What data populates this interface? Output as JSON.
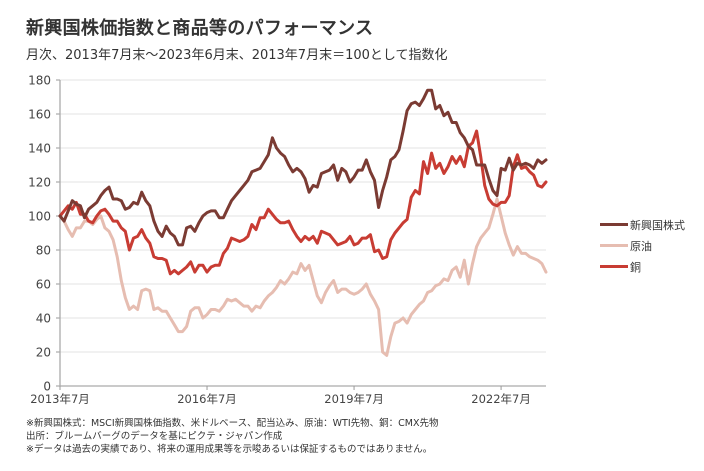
{
  "title": "新興国株価指数と商品等のパフォーマンス",
  "subtitle": "月次、2013年7月末～2023年6月末、2013年7月末＝100として指数化",
  "notes": [
    "※新興国株式：MSCI新興国株価指数、米ドルベース、配当込み、原油：WTI先物、銅：CMX先物",
    "出所：ブルームバーグのデータを基にピクテ・ジャパン作成",
    "※データは過去の実績であり、将来の運用成果等を示唆あるいは保証するものではありません。"
  ],
  "chart_data": {
    "type": "line",
    "title": "新興国株価指数と商品等のパフォーマンス",
    "xlabel": "",
    "ylabel": "",
    "x_start": "2013-07",
    "x_end": "2023-06",
    "frequency": "monthly",
    "ylim": [
      0,
      180
    ],
    "yticks": [
      0,
      20,
      40,
      60,
      80,
      100,
      120,
      140,
      160,
      180
    ],
    "xtick_labels": [
      "2013年7月",
      "2016年7月",
      "2019年7月",
      "2022年7月"
    ],
    "xtick_month_index": [
      0,
      36,
      72,
      108
    ],
    "grid": true,
    "legend_position": "right",
    "series": [
      {
        "name": "新興国株式",
        "color": "#7b3b33",
        "values": [
          100,
          97,
          103,
          109,
          107,
          106,
          99,
          104,
          106,
          108,
          112,
          115,
          117,
          110,
          110,
          109,
          104,
          105,
          108,
          107,
          114,
          109,
          106,
          97,
          91,
          88,
          94,
          90,
          88,
          83,
          83,
          93,
          94,
          91,
          96,
          100,
          102,
          103,
          103,
          99,
          99,
          104,
          109,
          112,
          115,
          118,
          121,
          126,
          127,
          128,
          132,
          136,
          146,
          140,
          137,
          135,
          130,
          126,
          128,
          126,
          122,
          114,
          118,
          117,
          125,
          126,
          127,
          130,
          121,
          128,
          126,
          120,
          123,
          127,
          127,
          133,
          126,
          121,
          105,
          115,
          123,
          133,
          135,
          139,
          150,
          162,
          166,
          167,
          165,
          169,
          174,
          174,
          163,
          165,
          159,
          161,
          155,
          155,
          149,
          146,
          141,
          139,
          130,
          130,
          130,
          122,
          115,
          112,
          128,
          127,
          134,
          127,
          131,
          130,
          131,
          130,
          128,
          133,
          131,
          133
        ]
      },
      {
        "name": "原油",
        "color": "#e6bdb1",
        "values": [
          100,
          97,
          92,
          88,
          93,
          93,
          97,
          97,
          95,
          98,
          100,
          93,
          91,
          86,
          76,
          62,
          52,
          45,
          47,
          45,
          56,
          57,
          56,
          45,
          46,
          44,
          44,
          40,
          36,
          32,
          32,
          35,
          44,
          46,
          46,
          40,
          42,
          45,
          45,
          44,
          47,
          51,
          50,
          51,
          49,
          47,
          47,
          44,
          47,
          46,
          50,
          53,
          55,
          58,
          62,
          60,
          63,
          67,
          66,
          72,
          68,
          71,
          62,
          53,
          49,
          55,
          59,
          62,
          55,
          57,
          57,
          55,
          54,
          55,
          57,
          60,
          54,
          50,
          45,
          20,
          18,
          29,
          37,
          38,
          40,
          37,
          42,
          45,
          48,
          50,
          55,
          56,
          59,
          60,
          63,
          62,
          68,
          70,
          64,
          74,
          60,
          72,
          82,
          87,
          90,
          93,
          101,
          110,
          100,
          90,
          83,
          77,
          82,
          78,
          78,
          76,
          75,
          74,
          72,
          67
        ]
      },
      {
        "name": "銅",
        "color": "#c83c33",
        "values": [
          100,
          103,
          106,
          104,
          108,
          101,
          101,
          97,
          96,
          100,
          103,
          104,
          101,
          97,
          97,
          93,
          91,
          80,
          87,
          88,
          92,
          87,
          84,
          76,
          75,
          75,
          74,
          66,
          68,
          66,
          68,
          70,
          73,
          67,
          71,
          71,
          67,
          70,
          71,
          71,
          78,
          81,
          87,
          86,
          85,
          86,
          88,
          95,
          92,
          99,
          99,
          104,
          101,
          98,
          96,
          96,
          97,
          92,
          88,
          85,
          88,
          86,
          88,
          84,
          91,
          90,
          89,
          86,
          83,
          84,
          85,
          88,
          83,
          84,
          87,
          87,
          89,
          79,
          80,
          75,
          76,
          86,
          90,
          93,
          96,
          98,
          111,
          115,
          113,
          132,
          125,
          137,
          128,
          131,
          125,
          129,
          135,
          131,
          135,
          129,
          141,
          143,
          150,
          135,
          118,
          110,
          107,
          106,
          108,
          108,
          112,
          129,
          136,
          128,
          129,
          126,
          124,
          118,
          117,
          120
        ]
      }
    ]
  }
}
